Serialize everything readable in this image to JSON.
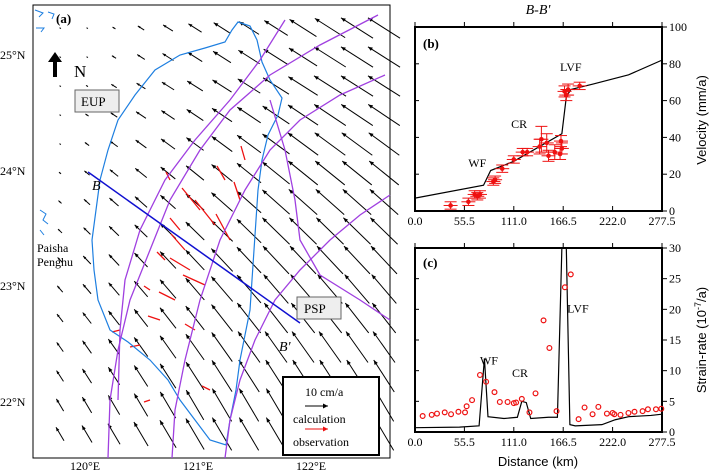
{
  "map": {
    "panel_label": "(a)",
    "north_label": "N",
    "plates": [
      "EUP",
      "PSP"
    ],
    "islands": [
      "Paisha",
      "Penghu"
    ],
    "profile_start": "B",
    "profile_end": "B'",
    "lat_labels": [
      "25°N",
      "24°N",
      "23°N",
      "22°N"
    ],
    "lon_labels": [
      "120°E",
      "121°E",
      "122°E"
    ],
    "legend": {
      "scale": "10 cm/a",
      "calculation": "calculation",
      "observation": "observation"
    },
    "colors": {
      "coast": "#1e7fe0",
      "fault": "#a040e0",
      "profile": "#1010d0",
      "calculation": "#000000",
      "observation": "#ee1111"
    }
  },
  "chart_data": [
    {
      "type": "line",
      "panel_label": "(b)",
      "title": "B-B'",
      "ylabel": "Velocity (mm/a)",
      "xlabel": "",
      "xlim": [
        0,
        277.5
      ],
      "ylim": [
        0,
        100
      ],
      "xticks": [
        "0.0",
        "55.5",
        "111.0",
        "166.5",
        "222.0",
        "277.5"
      ],
      "yticks": [
        "0",
        "20",
        "40",
        "60",
        "80",
        "100"
      ],
      "annotations": [
        {
          "text": "WF",
          "x": 70,
          "y": 24
        },
        {
          "text": "CR",
          "x": 117,
          "y": 45
        },
        {
          "text": "LVF",
          "x": 175,
          "y": 76
        }
      ],
      "series": [
        {
          "kind": "line",
          "color": "#000000",
          "x": [
            0,
            77,
            85,
            111,
            165,
            170,
            175,
            200,
            240,
            277.5
          ],
          "y": [
            7,
            14,
            22,
            27,
            42,
            62,
            66,
            69,
            74,
            82
          ]
        },
        {
          "kind": "points",
          "color": "#ee1111",
          "x": [
            40,
            60,
            67,
            70,
            73,
            88,
            90,
            98,
            111,
            121,
            126,
            140,
            142,
            148,
            150,
            157,
            163,
            164,
            165,
            168,
            170,
            172,
            185
          ],
          "y": [
            3,
            5,
            9,
            8,
            9,
            16,
            17,
            23,
            28,
            32,
            32,
            35,
            39,
            37,
            30,
            32,
            31,
            38,
            34,
            65,
            63,
            66,
            68
          ],
          "yerr": [
            2,
            2,
            2,
            2,
            2,
            2,
            2,
            2,
            2,
            2,
            2,
            4,
            7,
            5,
            3,
            4,
            3,
            3,
            3,
            3,
            3,
            3,
            2
          ]
        }
      ]
    },
    {
      "type": "line",
      "panel_label": "(c)",
      "ylabel": "Strain-rate (10",
      "ylabel_sup": "-7",
      "ylabel_end": "/a)",
      "xlabel": "Distance (km)",
      "xlim": [
        0,
        277.5
      ],
      "ylim": [
        0,
        30
      ],
      "xticks": [
        "0.0",
        "55.5",
        "111.0",
        "166.5",
        "222.0",
        "277.5"
      ],
      "yticks": [
        "0",
        "5",
        "10",
        "15",
        "20",
        "25",
        "30"
      ],
      "annotations": [
        {
          "text": "WF",
          "x": 83,
          "y": 11
        },
        {
          "text": "CR",
          "x": 118,
          "y": 9
        },
        {
          "text": "LVF",
          "x": 183,
          "y": 19.5
        }
      ],
      "series": [
        {
          "kind": "line",
          "color": "#000000",
          "x": [
            0,
            50,
            72,
            78,
            82,
            100,
            115,
            120,
            125,
            130,
            150,
            160,
            165,
            170,
            174,
            180,
            210,
            225,
            240,
            265,
            277.5
          ],
          "y": [
            0.7,
            0.8,
            1,
            12,
            2.5,
            2.2,
            2.4,
            5,
            4.8,
            2.2,
            2.4,
            2.4,
            30,
            30,
            1.2,
            1,
            1.2,
            2,
            2.5,
            2.7,
            2.9
          ]
        },
        {
          "kind": "points",
          "color": "#ee1111",
          "x": [
            8.6,
            18.8,
            24.7,
            33.4,
            40.5,
            48.8,
            56.2,
            58,
            64.1,
            73,
            79.9,
            89.3,
            95.3,
            104,
            111,
            113.6,
            120,
            128.6,
            135.4,
            144.4,
            151,
            159,
            168.4,
            175,
            183.8,
            190.5,
            199.5,
            206,
            215.6,
            222,
            224,
            230.9,
            239.8,
            246.6,
            255.7,
            261.7,
            270.7,
            276.7
          ],
          "y": [
            2.6,
            2.8,
            3,
            3.2,
            2.9,
            3.3,
            3.2,
            4.2,
            5.2,
            9.3,
            8.2,
            6.5,
            4.9,
            4.9,
            4.7,
            4.8,
            5.4,
            3.2,
            6.3,
            18.2,
            13.7,
            3.4,
            23.6,
            25.7,
            2.1,
            4,
            2.9,
            4.1,
            3,
            3.1,
            2.9,
            2.8,
            3.1,
            3.3,
            3.4,
            3.7,
            3.7,
            3.8
          ]
        }
      ]
    }
  ]
}
